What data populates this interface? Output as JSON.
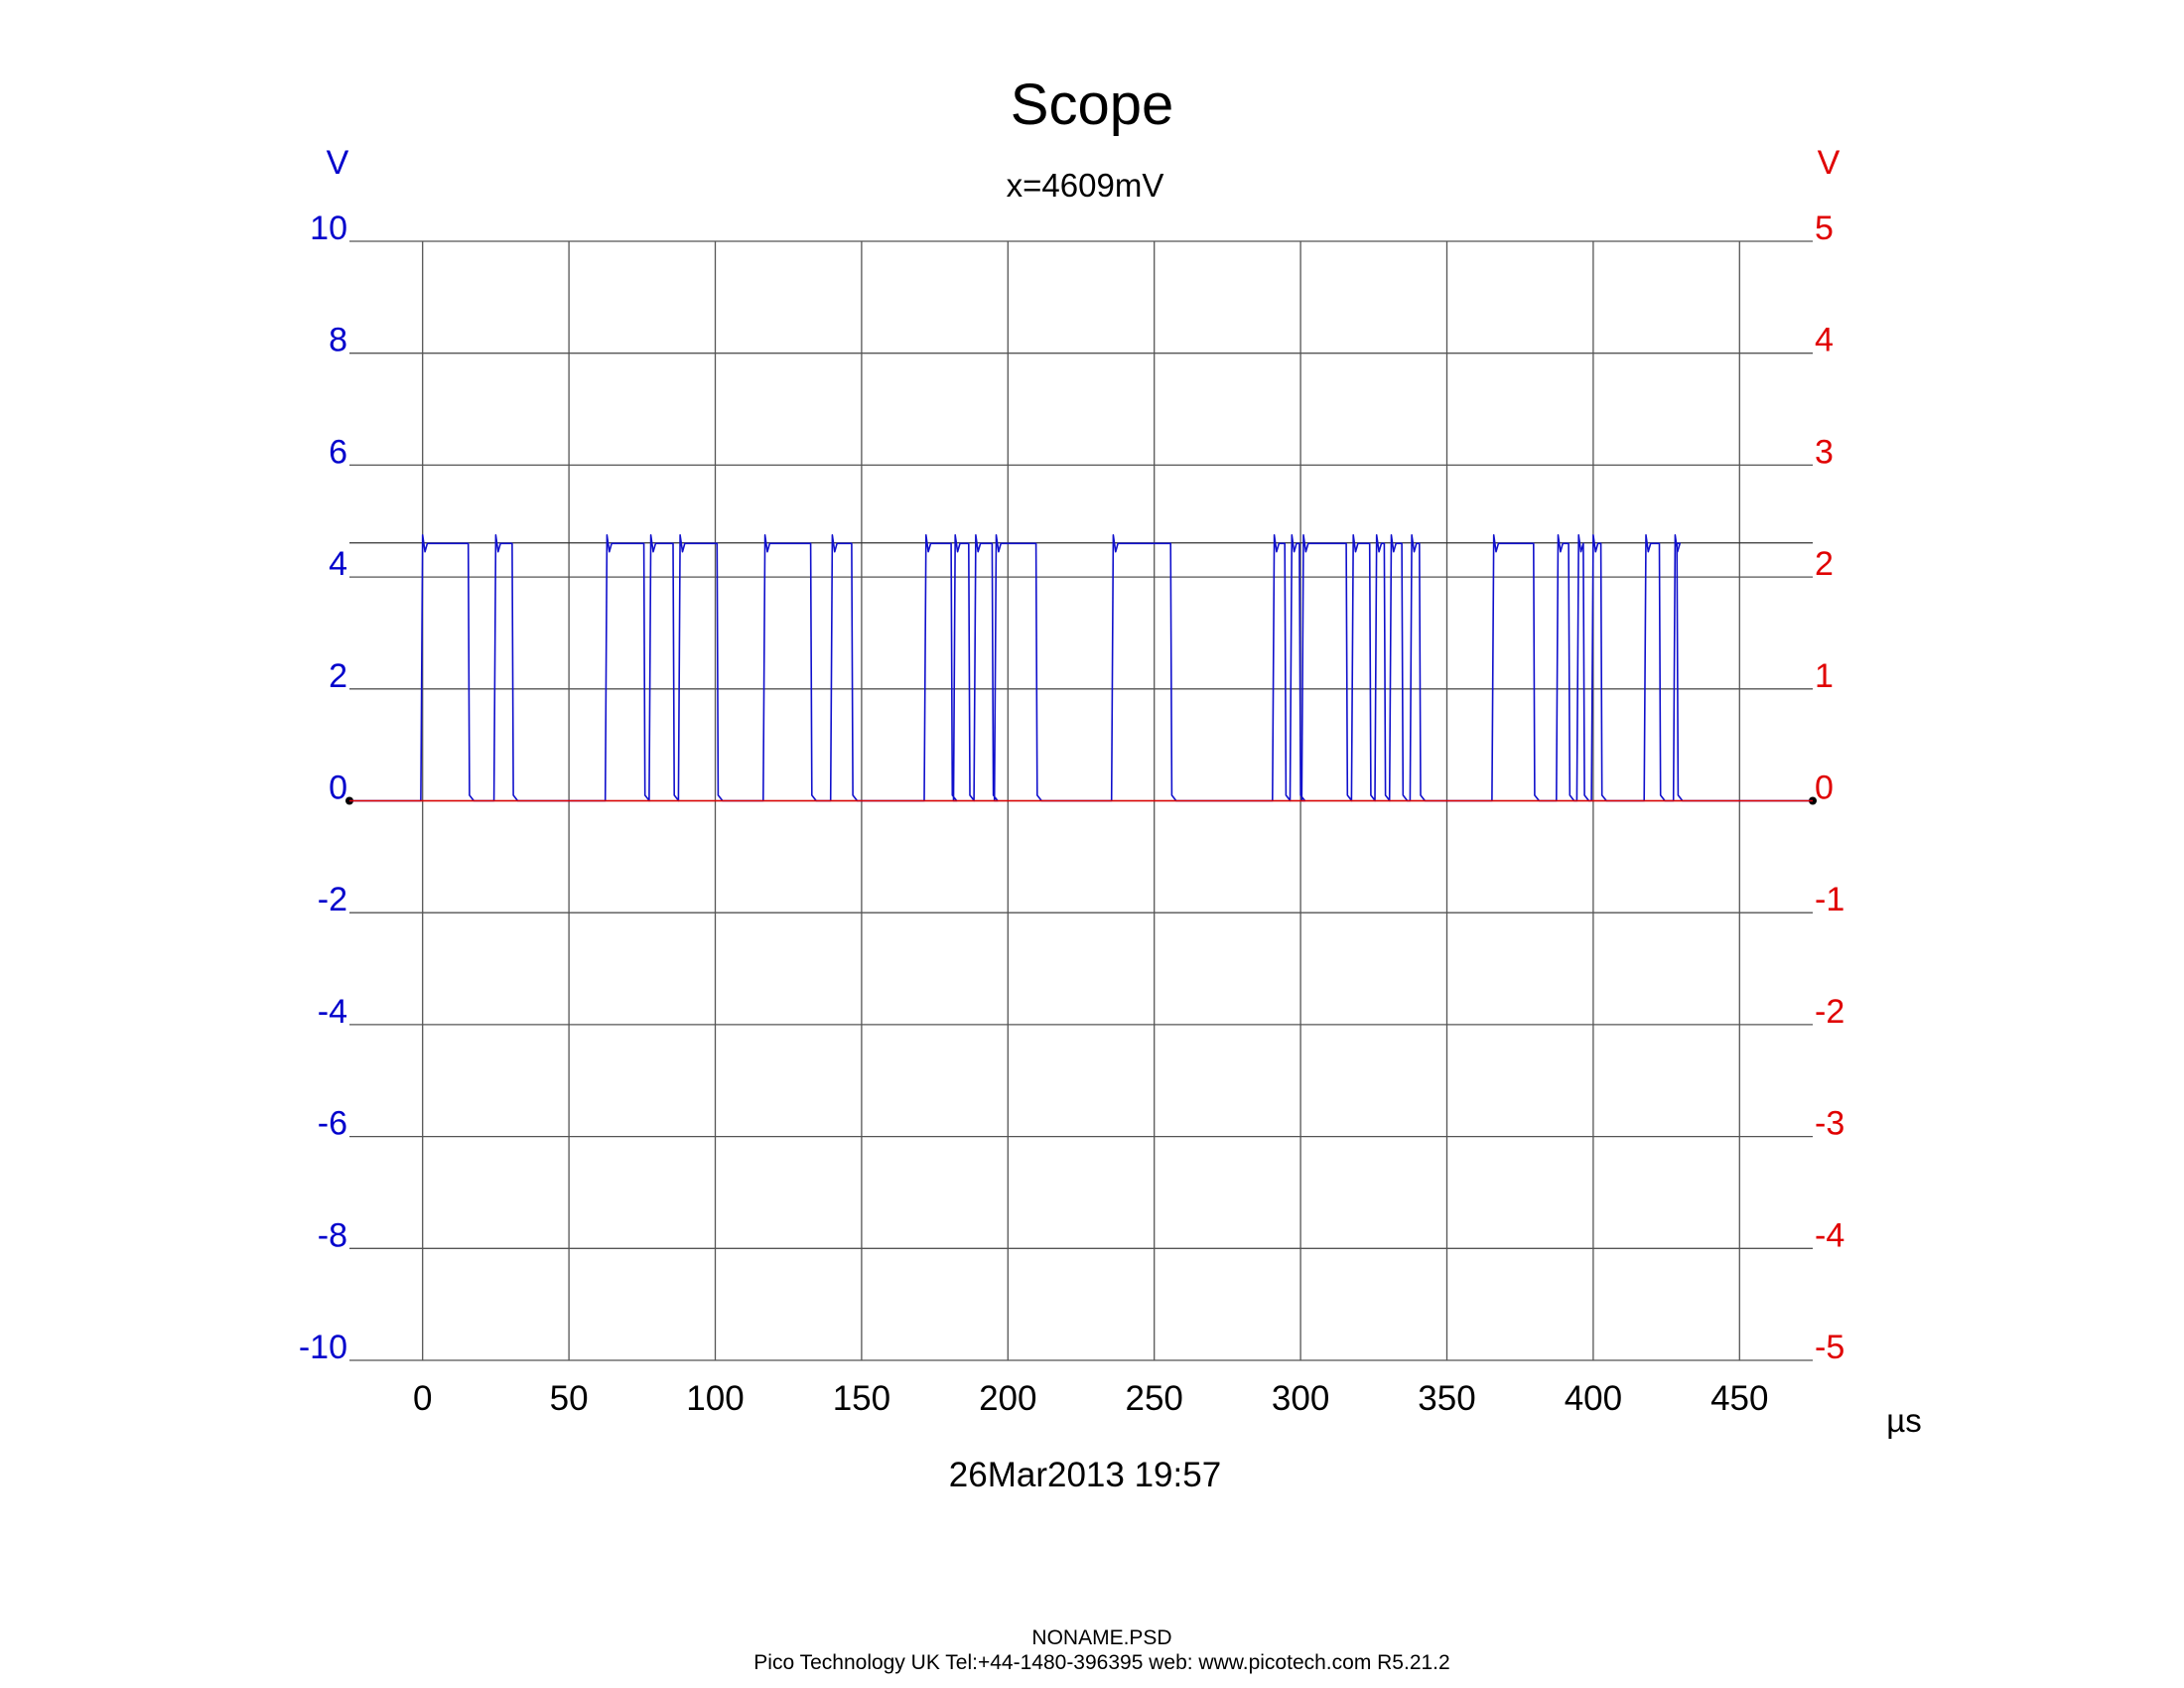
{
  "chart_data": {
    "type": "line",
    "title": "Scope",
    "cursor_readout": "x=4609mV",
    "timestamp": "26Mar2013  19:57",
    "x_unit": "µs",
    "y_left_unit": "V",
    "y_right_unit": "V",
    "xlim": [
      -25,
      475
    ],
    "x_ticks": [
      0,
      50,
      100,
      150,
      200,
      250,
      300,
      350,
      400,
      450
    ],
    "y_left_lim": [
      -10,
      10
    ],
    "y_left_ticks": [
      10,
      8,
      6,
      4,
      2,
      0,
      -2,
      -4,
      -6,
      -8,
      -10
    ],
    "y_right_lim": [
      -5,
      5
    ],
    "y_right_ticks": [
      5,
      4,
      3,
      2,
      1,
      0,
      -1,
      -2,
      -3,
      -4,
      -5
    ],
    "grid": true,
    "cursor_level": 4.609,
    "series": [
      {
        "axis": "left",
        "color": "#1010cc",
        "high_level": 4.6,
        "low_level": 0.0,
        "high_intervals": [
          [
            0,
            16
          ],
          [
            25,
            31
          ],
          [
            63,
            76
          ],
          [
            78,
            86
          ],
          [
            88,
            101
          ],
          [
            117,
            133
          ],
          [
            140,
            147
          ],
          [
            172,
            181
          ],
          [
            182,
            187
          ],
          [
            189,
            195
          ],
          [
            196,
            210
          ],
          [
            236,
            256
          ],
          [
            291,
            295
          ],
          [
            297,
            300
          ],
          [
            301,
            316
          ],
          [
            318,
            324
          ],
          [
            326,
            329
          ],
          [
            331,
            335
          ],
          [
            338,
            341
          ],
          [
            366,
            380
          ],
          [
            388,
            392
          ],
          [
            395,
            397
          ],
          [
            400,
            403
          ],
          [
            418,
            423
          ],
          [
            428,
            429
          ]
        ]
      },
      {
        "axis": "right",
        "color": "#dd0000",
        "constant_value": 0.0
      }
    ]
  },
  "footer": {
    "file": "NONAME.PSD",
    "info": "Pico Technology UK  Tel:+44-1480-396395  web: www.picotech.com R5.21.2"
  }
}
